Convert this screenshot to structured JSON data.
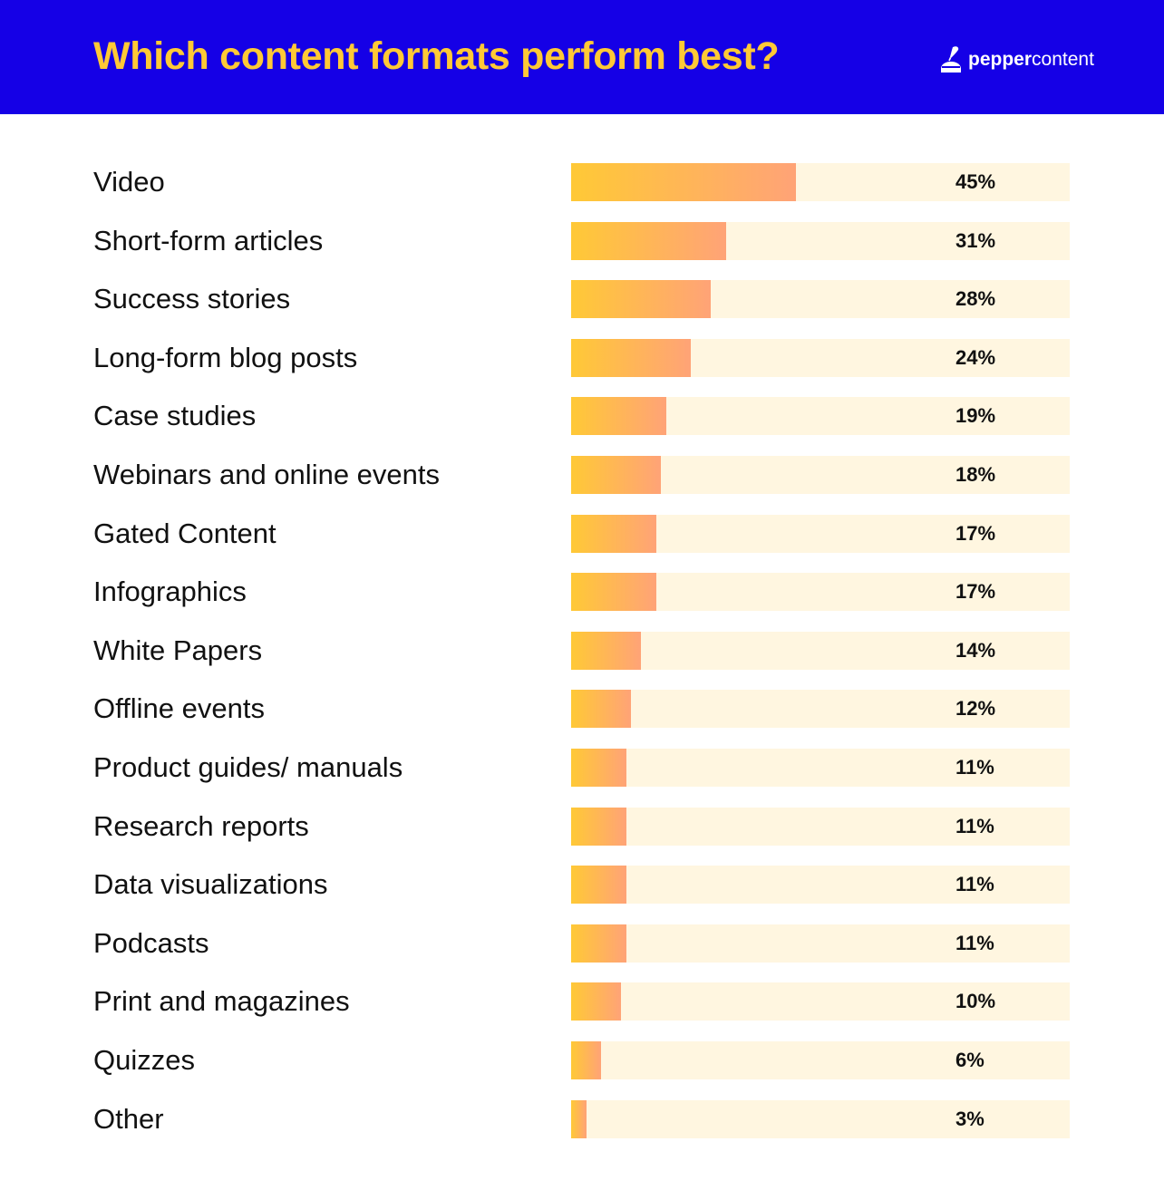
{
  "header": {
    "title": "Which content formats perform best?",
    "logo_part1": "pepper",
    "logo_part2": "content",
    "logo_icon": "inkwell-quill-icon",
    "background_color": "#1500e6",
    "title_color": "#ffc936"
  },
  "chart_data": {
    "type": "bar",
    "orientation": "horizontal",
    "title": "Which content formats perform best?",
    "categories": [
      "Video",
      "Short-form articles",
      "Success stories",
      "Long-form blog posts",
      "Case studies",
      "Webinars and online events",
      "Gated Content",
      "Infographics",
      "White Papers",
      "Offline events",
      "Product guides/ manuals",
      "Research reports",
      "Data visualizations",
      "Podcasts",
      "Print and magazines",
      "Quizzes",
      "Other"
    ],
    "values": [
      45,
      31,
      28,
      24,
      19,
      18,
      17,
      17,
      14,
      12,
      11,
      11,
      11,
      11,
      10,
      6,
      3
    ],
    "value_labels": [
      "45%",
      "31%",
      "28%",
      "24%",
      "19%",
      "18%",
      "17%",
      "17%",
      "14%",
      "12%",
      "11%",
      "11%",
      "11%",
      "11%",
      "10%",
      "6%",
      "3%"
    ],
    "xlim": [
      0,
      100
    ],
    "grid": false,
    "colors": {
      "bar_start": "#ffc936",
      "bar_end": "#ffa377",
      "track": "#fff6e0"
    }
  }
}
